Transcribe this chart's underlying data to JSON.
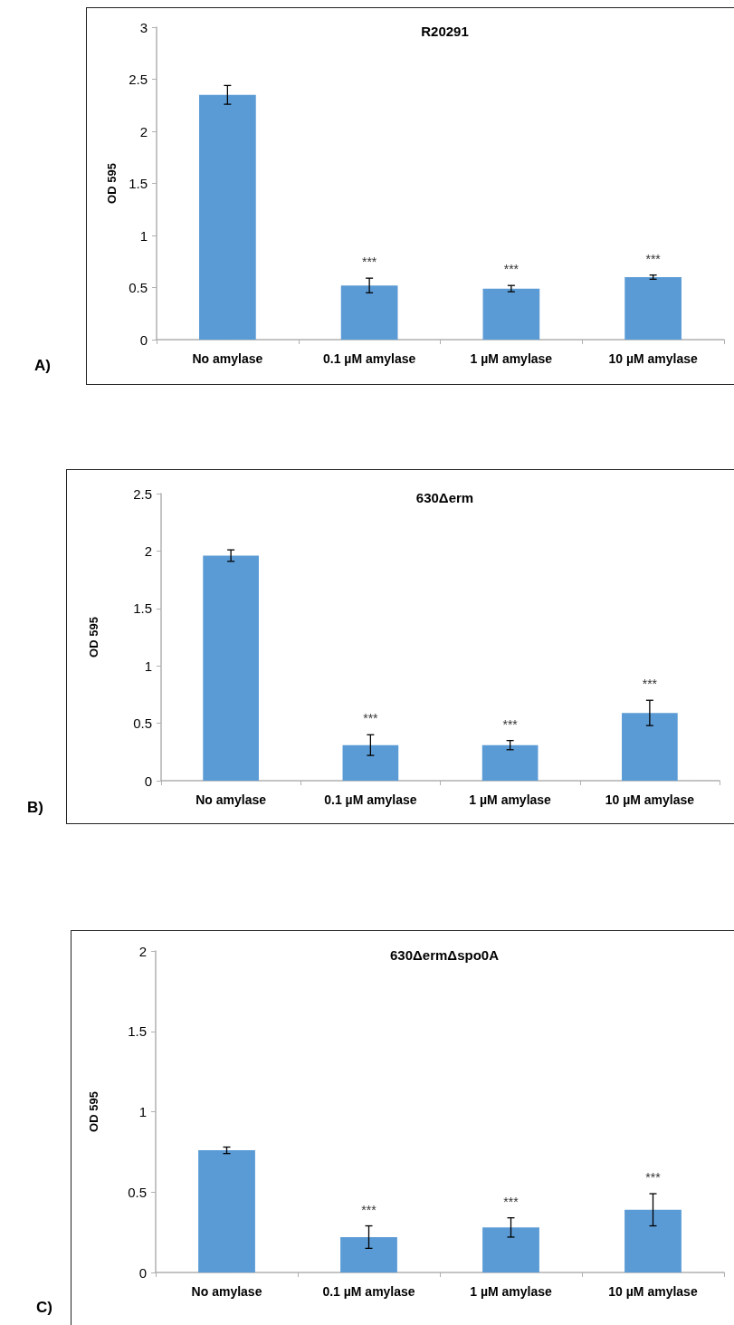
{
  "chart_data": [
    {
      "type": "bar",
      "title": "R20291",
      "ylabel": "OD 595",
      "categories": [
        "No amylase",
        "0.1 µM amylase",
        "1 µM amylase",
        "10 µM amylase"
      ],
      "values": [
        2.35,
        0.52,
        0.49,
        0.6
      ],
      "errors": [
        0.09,
        0.07,
        0.03,
        0.02
      ],
      "color": "#5b9bd5",
      "ylim": [
        0,
        3
      ],
      "yticks": [
        0,
        0.5,
        1,
        1.5,
        2,
        2.5,
        3
      ],
      "grid": false,
      "annotations": [
        "A)",
        "***",
        "***",
        "***"
      ]
    },
    {
      "type": "bar",
      "title": "630Δerm",
      "ylabel": "OD 595",
      "categories": [
        "No amylase",
        "0.1 µM amylase",
        "1 µM amylase",
        "10 µM amylase"
      ],
      "values": [
        1.96,
        0.31,
        0.31,
        0.59
      ],
      "errors": [
        0.05,
        0.09,
        0.04,
        0.11
      ],
      "color": "#5b9bd5",
      "ylim": [
        0,
        2.5
      ],
      "yticks": [
        0,
        0.5,
        1,
        1.5,
        2,
        2.5
      ],
      "grid": false,
      "annotations": [
        "B)",
        "***",
        "***",
        "***"
      ]
    },
    {
      "type": "bar",
      "title": "630ΔermΔspo0A",
      "ylabel": "OD 595",
      "categories": [
        "No amylase",
        "0.1 µM amylase",
        "1 µM amylase",
        "10 µM amylase"
      ],
      "values": [
        0.76,
        0.22,
        0.28,
        0.39
      ],
      "errors": [
        0.02,
        0.07,
        0.06,
        0.1
      ],
      "color": "#5b9bd5",
      "ylim": [
        0,
        2
      ],
      "yticks": [
        0,
        0.5,
        1,
        1.5,
        2
      ],
      "grid": false,
      "annotations": [
        "C)",
        "***",
        "***",
        "***"
      ]
    }
  ]
}
